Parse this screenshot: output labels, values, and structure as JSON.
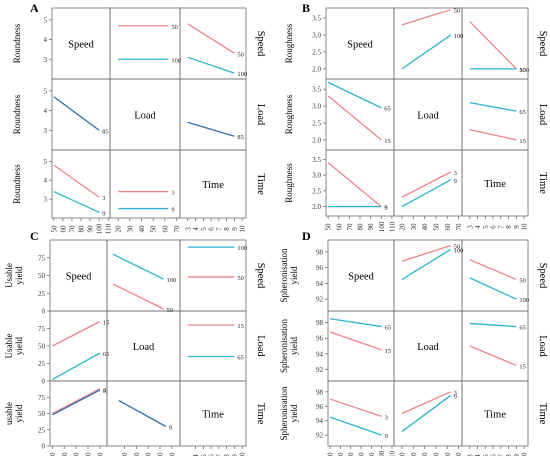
{
  "figure": {
    "colors": {
      "pink": "#f0828c",
      "blue": "#2ab5cc",
      "dark": "#2f6ea8",
      "frame": "#6d6d6d"
    }
  },
  "chart_data": [
    {
      "type": "line",
      "panel": "A",
      "factors": [
        "Speed",
        "Load",
        "Time"
      ],
      "ylabel": "Roundness",
      "row_ranges": [
        [
          2.0,
          5.6
        ],
        [
          2.0,
          5.6
        ],
        [
          2.0,
          5.6
        ]
      ],
      "row_ticks": [
        [
          3,
          4,
          5
        ],
        [
          3,
          4,
          5
        ],
        [
          3,
          4,
          5
        ]
      ],
      "col_ranges": [
        [
          48,
          112
        ],
        [
          13,
          73
        ],
        [
          2,
          10.5
        ]
      ],
      "col_ticks": [
        [
          "50",
          "60",
          "70",
          "80",
          "90",
          "100",
          "110"
        ],
        [
          "20",
          "30",
          "40",
          "50",
          "60",
          "70"
        ],
        [
          "3",
          "4",
          "5",
          "6",
          "7",
          "8",
          "9",
          "10"
        ]
      ],
      "interactions": [
        {
          "row": 0,
          "col": 1,
          "series": [
            {
              "name": "50",
              "color": "pink",
              "x": [
                20,
                63
              ],
              "y": [
                4.7,
                4.7
              ]
            },
            {
              "name": "100",
              "color": "blue",
              "x": [
                20,
                63
              ],
              "y": [
                3.0,
                3.0
              ]
            }
          ]
        },
        {
          "row": 0,
          "col": 2,
          "series": [
            {
              "name": "50",
              "color": "pink",
              "x": [
                3,
                9
              ],
              "y": [
                4.8,
                3.3
              ]
            },
            {
              "name": "100",
              "color": "blue",
              "x": [
                3,
                9
              ],
              "y": [
                3.1,
                2.3
              ]
            }
          ]
        },
        {
          "row": 1,
          "col": 0,
          "series": [
            {
              "name": "85",
              "color": "dark",
              "x": [
                50,
                100
              ],
              "y": [
                4.7,
                3.0
              ]
            }
          ]
        },
        {
          "row": 1,
          "col": 2,
          "series": [
            {
              "name": "85",
              "color": "dark",
              "x": [
                3,
                9
              ],
              "y": [
                3.4,
                2.7
              ]
            }
          ]
        },
        {
          "row": 2,
          "col": 0,
          "series": [
            {
              "name": "3",
              "color": "pink",
              "x": [
                50,
                100
              ],
              "y": [
                4.8,
                3.1
              ]
            },
            {
              "name": "9",
              "color": "blue",
              "x": [
                50,
                100
              ],
              "y": [
                3.4,
                2.3
              ]
            }
          ]
        },
        {
          "row": 2,
          "col": 1,
          "series": [
            {
              "name": "3",
              "color": "pink",
              "x": [
                20,
                63
              ],
              "y": [
                3.4,
                3.4
              ]
            },
            {
              "name": "9",
              "color": "blue",
              "x": [
                20,
                63
              ],
              "y": [
                2.5,
                2.5
              ]
            }
          ]
        }
      ]
    },
    {
      "type": "line",
      "panel": "B",
      "factors": [
        "Speed",
        "Load",
        "Time"
      ],
      "ylabel": "Roughness",
      "row_ranges": [
        [
          1.7,
          3.8
        ],
        [
          1.7,
          3.8
        ],
        [
          1.7,
          3.8
        ]
      ],
      "row_ticks": [
        [
          "2.0",
          "2.5",
          "3.0",
          "3.5"
        ],
        [
          "2.0",
          "2.5",
          "3.0",
          "3.5"
        ],
        [
          "2.0",
          "2.5",
          "3.0",
          "3.5"
        ]
      ],
      "col_ranges": [
        [
          48,
          112
        ],
        [
          13,
          73
        ],
        [
          2,
          10.5
        ]
      ],
      "col_ticks": [
        [
          "50",
          "60",
          "70",
          "80",
          "90",
          "100",
          "110"
        ],
        [
          "20",
          "30",
          "40",
          "50",
          "60",
          "70"
        ],
        [
          "3",
          "4",
          "5",
          "6",
          "7",
          "8",
          "9",
          "10"
        ]
      ],
      "interactions": [
        {
          "row": 0,
          "col": 1,
          "series": [
            {
              "name": "50",
              "color": "pink",
              "x": [
                20,
                63
              ],
              "y": [
                3.3,
                3.75
              ]
            },
            {
              "name": "100",
              "color": "blue",
              "x": [
                20,
                63
              ],
              "y": [
                2.0,
                3.0
              ]
            }
          ]
        },
        {
          "row": 0,
          "col": 2,
          "series": [
            {
              "name": "50",
              "color": "pink",
              "x": [
                3,
                9
              ],
              "y": [
                3.4,
                2.0
              ]
            },
            {
              "name": "100",
              "color": "blue",
              "x": [
                3,
                9
              ],
              "y": [
                2.0,
                2.0
              ]
            }
          ]
        },
        {
          "row": 1,
          "col": 0,
          "series": [
            {
              "name": "65",
              "color": "blue",
              "x": [
                50,
                100
              ],
              "y": [
                3.7,
                2.95
              ]
            },
            {
              "name": "15",
              "color": "pink",
              "x": [
                50,
                100
              ],
              "y": [
                3.3,
                2.0
              ]
            }
          ]
        },
        {
          "row": 1,
          "col": 2,
          "series": [
            {
              "name": "65",
              "color": "blue",
              "x": [
                3,
                9
              ],
              "y": [
                3.1,
                2.85
              ]
            },
            {
              "name": "15",
              "color": "pink",
              "x": [
                3,
                9
              ],
              "y": [
                2.3,
                2.0
              ]
            }
          ]
        },
        {
          "row": 2,
          "col": 0,
          "series": [
            {
              "name": "3",
              "color": "pink",
              "x": [
                50,
                100
              ],
              "y": [
                3.4,
                2.0
              ]
            },
            {
              "name": "9",
              "color": "blue",
              "x": [
                50,
                100
              ],
              "y": [
                2.0,
                2.0
              ]
            }
          ]
        },
        {
          "row": 2,
          "col": 1,
          "series": [
            {
              "name": "3",
              "color": "pink",
              "x": [
                20,
                63
              ],
              "y": [
                2.3,
                3.1
              ]
            },
            {
              "name": "9",
              "color": "blue",
              "x": [
                20,
                63
              ],
              "y": [
                2.0,
                2.85
              ]
            }
          ]
        }
      ]
    },
    {
      "type": "line",
      "panel": "C",
      "factors": [
        "Speed",
        "Load",
        "Time"
      ],
      "ylabel_lines": [
        [
          "Usable",
          "yield"
        ],
        [
          "Usable",
          "yield"
        ],
        [
          "usable",
          "yield"
        ]
      ],
      "row_ranges": [
        [
          0,
          100
        ],
        [
          0,
          100
        ],
        [
          0,
          100
        ]
      ],
      "row_ticks": [
        [
          "0",
          "25",
          "50",
          "75"
        ],
        [
          "0",
          "25",
          "50",
          "75"
        ],
        [
          "0",
          "25",
          "50",
          "75"
        ]
      ],
      "col_ranges": [
        [
          48,
          96
        ],
        [
          15,
          77
        ],
        [
          2,
          10.5
        ]
      ],
      "col_ticks": [
        [
          "50",
          "60",
          "70",
          "80",
          "90"
        ],
        [
          "30",
          "40",
          "50",
          "60",
          "70"
        ],
        [
          "4",
          "5",
          "6",
          "7",
          "8",
          "9",
          "10"
        ]
      ],
      "interactions": [
        {
          "row": 0,
          "col": 1,
          "series": [
            {
              "name": "100",
              "color": "blue",
              "x": [
                20,
                63
              ],
              "y": [
                80,
                45
              ]
            },
            {
              "name": "50",
              "color": "pink",
              "x": [
                20,
                63
              ],
              "y": [
                38,
                3
              ]
            }
          ]
        },
        {
          "row": 0,
          "col": 2,
          "series": [
            {
              "name": "100",
              "color": "blue",
              "x": [
                3,
                9
              ],
              "y": [
                90,
                90
              ]
            },
            {
              "name": "50",
              "color": "pink",
              "x": [
                3,
                9
              ],
              "y": [
                48,
                48
              ]
            }
          ]
        },
        {
          "row": 1,
          "col": 0,
          "series": [
            {
              "name": "15",
              "color": "pink",
              "x": [
                50,
                90
              ],
              "y": [
                50,
                85
              ]
            },
            {
              "name": "65",
              "color": "blue",
              "x": [
                50,
                90
              ],
              "y": [
                2,
                40
              ]
            }
          ]
        },
        {
          "row": 1,
          "col": 2,
          "series": [
            {
              "name": "15",
              "color": "pink",
              "x": [
                3,
                9
              ],
              "y": [
                80,
                80
              ]
            },
            {
              "name": "65",
              "color": "blue",
              "x": [
                3,
                9
              ],
              "y": [
                35,
                35
              ]
            }
          ]
        },
        {
          "row": 2,
          "col": 0,
          "series": [
            {
              "name": "3",
              "color": "pink",
              "x": [
                50,
                90
              ],
              "y": [
                50,
                88
              ]
            },
            {
              "name": "9",
              "color": "dark",
              "x": [
                50,
                90
              ],
              "y": [
                48,
                86
              ]
            }
          ]
        },
        {
          "row": 2,
          "col": 1,
          "series": [
            {
              "name": "9",
              "color": "dark",
              "x": [
                25,
                65
              ],
              "y": [
                70,
                30
              ]
            }
          ]
        }
      ]
    },
    {
      "type": "line",
      "panel": "D",
      "factors": [
        "Speed",
        "Load",
        "Time"
      ],
      "ylabel_lines": [
        [
          "Spheronisation",
          "yield"
        ],
        [
          "Spheronisation",
          "yield"
        ],
        [
          "Spheronisation",
          "yield"
        ]
      ],
      "row_ranges": [
        [
          90.5,
          99.5
        ],
        [
          90.5,
          99.5
        ],
        [
          90.5,
          99.5
        ]
      ],
      "row_ticks": [
        [
          "92",
          "94",
          "96",
          "98"
        ],
        [
          "92",
          "94",
          "96",
          "98"
        ],
        [
          "92",
          "94",
          "96",
          "98"
        ]
      ],
      "col_ranges": [
        [
          48,
          112
        ],
        [
          13,
          73
        ],
        [
          2,
          10.5
        ]
      ],
      "col_ticks": [
        [
          "50",
          "60",
          "70",
          "80",
          "90",
          "100",
          "110"
        ],
        [
          "20",
          "30",
          "40",
          "50",
          "60",
          "70"
        ],
        [
          "3",
          "4",
          "5",
          "6",
          "7",
          "8",
          "9",
          "10"
        ]
      ],
      "interactions": [
        {
          "row": 0,
          "col": 1,
          "series": [
            {
              "name": "50",
              "color": "pink",
              "x": [
                20,
                63
              ],
              "y": [
                96.8,
                98.8
              ]
            },
            {
              "name": "100",
              "color": "blue",
              "x": [
                20,
                63
              ],
              "y": [
                94.5,
                98.3
              ]
            }
          ]
        },
        {
          "row": 0,
          "col": 2,
          "series": [
            {
              "name": "50",
              "color": "pink",
              "x": [
                3,
                9
              ],
              "y": [
                97.0,
                94.5
              ]
            },
            {
              "name": "100",
              "color": "blue",
              "x": [
                3,
                9
              ],
              "y": [
                94.7,
                92.0
              ]
            }
          ]
        },
        {
          "row": 1,
          "col": 0,
          "series": [
            {
              "name": "65",
              "color": "blue",
              "x": [
                50,
                100
              ],
              "y": [
                98.5,
                97.5
              ]
            },
            {
              "name": "15",
              "color": "pink",
              "x": [
                50,
                100
              ],
              "y": [
                96.8,
                94.5
              ]
            }
          ]
        },
        {
          "row": 1,
          "col": 2,
          "series": [
            {
              "name": "65",
              "color": "blue",
              "x": [
                3,
                9
              ],
              "y": [
                97.9,
                97.5
              ]
            },
            {
              "name": "15",
              "color": "pink",
              "x": [
                3,
                9
              ],
              "y": [
                95.0,
                92.5
              ]
            }
          ]
        },
        {
          "row": 2,
          "col": 0,
          "series": [
            {
              "name": "3",
              "color": "pink",
              "x": [
                50,
                100
              ],
              "y": [
                97.0,
                94.6
              ]
            },
            {
              "name": "9",
              "color": "blue",
              "x": [
                50,
                100
              ],
              "y": [
                94.5,
                92.0
              ]
            }
          ]
        },
        {
          "row": 2,
          "col": 1,
          "series": [
            {
              "name": "3",
              "color": "pink",
              "x": [
                20,
                63
              ],
              "y": [
                95.0,
                98.0
              ]
            },
            {
              "name": "9",
              "color": "blue",
              "x": [
                20,
                63
              ],
              "y": [
                92.5,
                97.5
              ]
            }
          ]
        }
      ]
    }
  ]
}
